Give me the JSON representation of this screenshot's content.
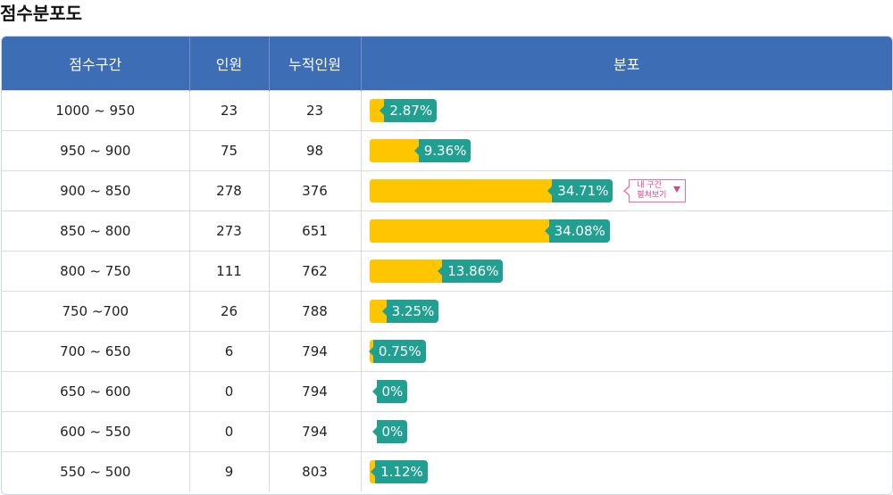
{
  "page_title": "점수분포도",
  "table": {
    "headers": [
      "점수구간",
      "인원",
      "누적인원",
      "분포"
    ],
    "rows": [
      {
        "range": "1000 ~ 950",
        "count": "23",
        "cumulative": "23",
        "pct_label": "2.87%",
        "pct": 2.87
      },
      {
        "range": "950 ~ 900",
        "count": "75",
        "cumulative": "98",
        "pct_label": "9.36%",
        "pct": 9.36
      },
      {
        "range": "900 ~ 850",
        "count": "278",
        "cumulative": "376",
        "pct_label": "34.71%",
        "pct": 34.71
      },
      {
        "range": "850 ~ 800",
        "count": "273",
        "cumulative": "651",
        "pct_label": "34.08%",
        "pct": 34.08
      },
      {
        "range": "800 ~ 750",
        "count": "111",
        "cumulative": "762",
        "pct_label": "13.86%",
        "pct": 13.86
      },
      {
        "range": "750 ~700",
        "count": "26",
        "cumulative": "788",
        "pct_label": "3.25%",
        "pct": 3.25
      },
      {
        "range": "700 ~ 650",
        "count": "6",
        "cumulative": "794",
        "pct_label": "0.75%",
        "pct": 0.75
      },
      {
        "range": "650 ~ 600",
        "count": "0",
        "cumulative": "794",
        "pct_label": "0%",
        "pct": 0
      },
      {
        "range": "600 ~ 550",
        "count": "0",
        "cumulative": "794",
        "pct_label": "0%",
        "pct": 0
      },
      {
        "range": "550 ~ 500",
        "count": "9",
        "cumulative": "803",
        "pct_label": "1.12%",
        "pct": 1.12
      }
    ]
  },
  "my_range_badge": {
    "row_index": 2,
    "line1": "내 구간",
    "line2": "펼쳐보기",
    "icon": "triangle-down-icon"
  },
  "colors": {
    "header_bg": "#3d6db4",
    "bar_fill": "#ffc600",
    "pct_tag": "#21a091",
    "badge": "#e0428a"
  }
}
